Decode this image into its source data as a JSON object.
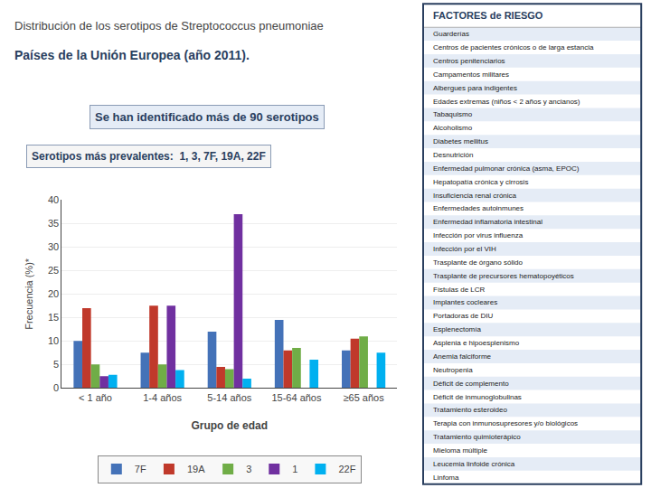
{
  "chart_data": {
    "type": "bar",
    "title": "Distribución de los serotipos de Streptococcus pneumoniae",
    "subtitle": "Países de la Unión Europea (año 2011).",
    "xlabel": "Grupo de edad",
    "ylabel": "Frecuencia (%)*",
    "categories": [
      "< 1 año",
      "1-4 años",
      "5-14 años",
      "15-64 años",
      "≥65 años"
    ],
    "series": [
      {
        "name": "7F",
        "color": "#4472b8",
        "values": [
          10,
          7.5,
          12,
          14.5,
          8
        ]
      },
      {
        "name": "19A",
        "color": "#c0392b",
        "values": [
          17,
          17.5,
          4.5,
          8,
          10.5
        ]
      },
      {
        "name": "3",
        "color": "#70ad47",
        "values": [
          5,
          5,
          4,
          8.5,
          11
        ]
      },
      {
        "name": "1",
        "color": "#7030a0",
        "values": [
          2.5,
          17.5,
          37,
          0,
          0
        ]
      },
      {
        "name": "22F",
        "color": "#00b0f0",
        "values": [
          2.8,
          3.8,
          2,
          6,
          7.5
        ]
      }
    ],
    "ylim": [
      0,
      40
    ],
    "yticks": [
      0,
      5,
      10,
      15,
      20,
      25,
      30,
      35,
      40
    ],
    "grid": true,
    "legend": "bottom",
    "annotations": [
      {
        "text": "Se han identificado más de 90 serotipos"
      },
      {
        "text": "Serotipos más prevalentes:  1, 3, 7F, 19A, 22F"
      },
      {
        "text": "FACTORES de RIESGO",
        "items": [
          "Guarderías",
          "Centros de pacientes crónicos o de larga estancia",
          "Centros penitenciarios",
          "Campamentos militares",
          "Albergues para indigentes",
          "Edades extremas (niños < 2 años y ancianos)",
          "Tabaquismo",
          "Alcoholismo",
          "Diabetes mellitus",
          "Desnutrición",
          "Enfermedad pulmonar crónica (asma, EPOC)",
          "Hepatopatía crónica y cirrosis",
          "Insuficiencia renal crónica",
          "Enfermedades autoinmunes",
          "Enfermedad inflamatoria intestinal",
          "Infección por virus influenza",
          "Infección por el VIH",
          "Trasplante de órgano sólido",
          "Trasplante de precursores hematopoyéticos",
          "Fístulas de LCR",
          "Implantes cocleares",
          "Portadoras de DIU",
          "Esplenectomía",
          "Asplenia e hipoesplenismo",
          "Anemia falciforme",
          "Neutropenia",
          "Déficit de complemento",
          "Déficit de inmunoglobulinas",
          "Tratamiento esteroideo",
          "Terapia con inmunosupresores y/o biológicos",
          "Tratamiento quimioterápico",
          "Mieloma múltiple",
          "Leucemia linfoide crónica",
          "Linfoma"
        ]
      }
    ]
  }
}
